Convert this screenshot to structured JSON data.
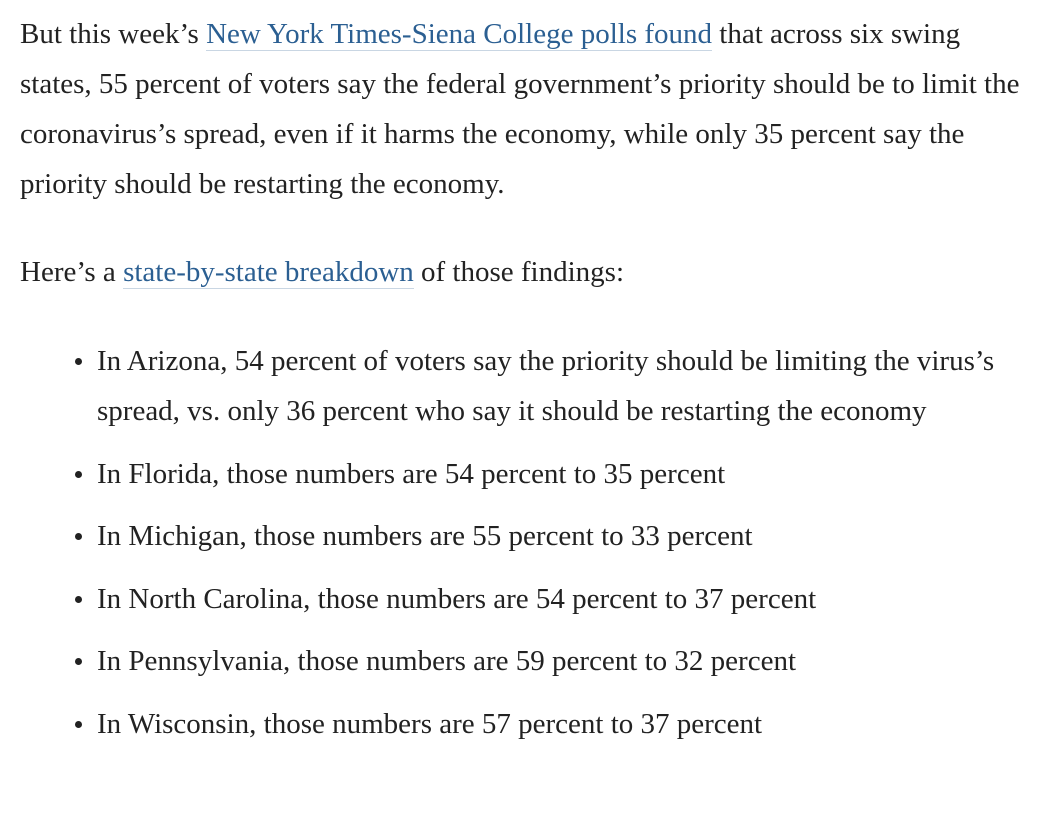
{
  "paragraph1": {
    "before_link": "But this week’s ",
    "link_text": "New York Times-Siena College polls found",
    "after_link": " that across six swing states, 55 percent of voters say the federal government’s priority should be to limit the coronavirus’s spread, even if it harms the economy, while only 35 percent say the priority should be restarting the economy."
  },
  "paragraph2": {
    "before_link": "Here’s a ",
    "link_text": "state-by-state breakdown",
    "after_link": " of those findings:"
  },
  "bullets": [
    "In Arizona, 54 percent of voters say the priority should be limiting the virus’s spread, vs. only 36 percent who say it should be restarting the economy",
    "In Florida, those numbers are 54 percent to 35 percent",
    "In Michigan, those numbers are 55 percent to 33 percent",
    "In North Carolina, those numbers are 54 percent to 37 percent",
    "In Pennsylvania, those numbers are 59 percent to 32 percent",
    "In Wisconsin, those numbers are 57 percent to 37 percent"
  ],
  "colors": {
    "text": "#222222",
    "link": "#2b5f92",
    "background": "#ffffff"
  }
}
